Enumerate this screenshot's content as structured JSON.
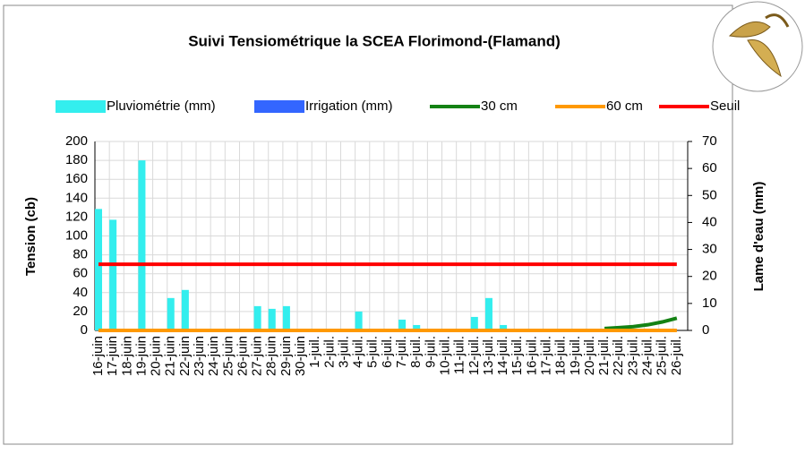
{
  "chart_data": {
    "type": "combo",
    "title": "Suivi Tensiométrique la SCEA Florimond-(Flamand)",
    "y_label": "Tension (cb)",
    "y2_label": "Lame d'eau (mm)",
    "categories": [
      "16-juin",
      "17-juin",
      "18-juin",
      "19-juin",
      "20-juin",
      "21-juin",
      "22-juin",
      "23-juin",
      "24-juin",
      "25-juin",
      "26-juin",
      "27-juin",
      "28-juin",
      "29-juin",
      "30-juin",
      "1-juil.",
      "2-juil.",
      "3-juil.",
      "4-juil.",
      "5-juil.",
      "6-juil.",
      "7-juil.",
      "8-juil.",
      "9-juil.",
      "10-juil.",
      "11-juil.",
      "12-juil.",
      "13-juil.",
      "14-juil.",
      "15-juil.",
      "16-juil.",
      "17-juil.",
      "18-juil.",
      "19-juil.",
      "20-juil.",
      "21-juil.",
      "22-juil.",
      "23-juil.",
      "24-juil.",
      "25-juil.",
      "26-juil."
    ],
    "ylim": [
      0,
      200
    ],
    "yticks": [
      0,
      20,
      40,
      60,
      80,
      100,
      120,
      140,
      160,
      180,
      200
    ],
    "y2lim": [
      0,
      70
    ],
    "y2ticks": [
      0,
      10,
      20,
      30,
      40,
      50,
      60,
      70
    ],
    "grid": true,
    "legend": "top",
    "series": [
      {
        "name": "Pluviométrie (mm)",
        "type": "bar",
        "axis": "y2",
        "color": "#33eeee",
        "values": [
          45,
          41,
          null,
          63,
          null,
          12,
          15,
          null,
          null,
          null,
          null,
          9,
          8,
          9,
          null,
          null,
          null,
          null,
          7,
          null,
          null,
          4,
          2,
          null,
          null,
          null,
          5,
          12,
          2,
          null,
          null,
          null,
          null,
          null,
          null,
          null,
          null,
          null,
          null,
          null,
          null
        ]
      },
      {
        "name": "Irrigation (mm)",
        "type": "bar",
        "axis": "y2",
        "color": "#3366ff",
        "values": [
          null,
          null,
          null,
          null,
          null,
          null,
          null,
          null,
          null,
          null,
          null,
          null,
          null,
          null,
          null,
          null,
          null,
          null,
          null,
          null,
          null,
          null,
          null,
          null,
          null,
          null,
          null,
          null,
          null,
          null,
          null,
          null,
          null,
          null,
          null,
          null,
          null,
          null,
          null,
          null,
          null
        ]
      },
      {
        "name": "30 cm",
        "type": "line",
        "color": "#148214",
        "values": [
          null,
          null,
          null,
          null,
          null,
          null,
          null,
          null,
          null,
          null,
          null,
          null,
          null,
          null,
          null,
          null,
          null,
          null,
          null,
          null,
          null,
          null,
          null,
          null,
          null,
          null,
          null,
          null,
          null,
          null,
          null,
          null,
          null,
          null,
          null,
          2,
          3,
          4,
          6,
          9,
          13
        ]
      },
      {
        "name": "60 cm",
        "type": "line",
        "color": "#ff9900",
        "values": [
          0,
          0,
          0,
          0,
          0,
          0,
          0,
          0,
          0,
          0,
          0,
          0,
          0,
          0,
          0,
          0,
          0,
          0,
          0,
          0,
          0,
          0,
          0,
          0,
          0,
          0,
          0,
          0,
          0,
          0,
          0,
          0,
          0,
          0,
          0,
          0,
          0,
          0,
          0,
          0,
          0
        ]
      },
      {
        "name": "Seuil",
        "type": "line",
        "color": "#ff0000",
        "values": [
          70,
          70,
          70,
          70,
          70,
          70,
          70,
          70,
          70,
          70,
          70,
          70,
          70,
          70,
          70,
          70,
          70,
          70,
          70,
          70,
          70,
          70,
          70,
          70,
          70,
          70,
          70,
          70,
          70,
          70,
          70,
          70,
          70,
          70,
          70,
          70,
          70,
          70,
          70,
          70,
          70
        ]
      }
    ]
  }
}
